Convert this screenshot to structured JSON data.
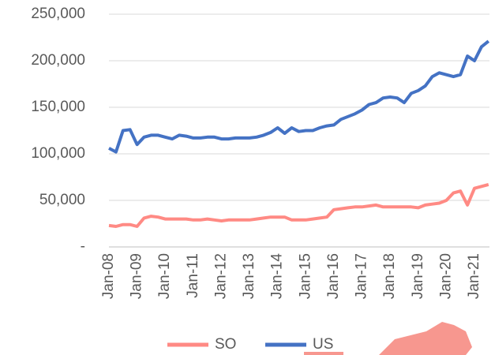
{
  "chart_data": {
    "type": "line",
    "categories": [
      "Jan-08",
      null,
      null,
      null,
      "Jan-09",
      null,
      null,
      null,
      "Jan-10",
      null,
      null,
      null,
      "Jan-11",
      null,
      null,
      null,
      "Jan-12",
      null,
      null,
      null,
      "Jan-13",
      null,
      null,
      null,
      "Jan-14",
      null,
      null,
      null,
      "Jan-15",
      null,
      null,
      null,
      "Jan-16",
      null,
      null,
      null,
      "Jan-17",
      null,
      null,
      null,
      "Jan-18",
      null,
      null,
      null,
      "Jan-19",
      null,
      null,
      null,
      "Jan-20",
      null,
      null,
      null,
      "Jan-21",
      null,
      null
    ],
    "series": [
      {
        "name": "SO",
        "color": "#ff8a84",
        "values": [
          23000,
          22000,
          24000,
          24000,
          22000,
          31000,
          33000,
          32000,
          30000,
          30000,
          30000,
          30000,
          29000,
          29000,
          30000,
          29000,
          28000,
          29000,
          29000,
          29000,
          29000,
          30000,
          31000,
          32000,
          32000,
          32000,
          29000,
          29000,
          29000,
          30000,
          31000,
          32000,
          40000,
          41000,
          42000,
          43000,
          43000,
          44000,
          45000,
          43000,
          43000,
          43000,
          43000,
          43000,
          42000,
          45000,
          46000,
          47000,
          50000,
          58000,
          60000,
          45000,
          63000,
          65000,
          67000
        ]
      },
      {
        "name": "US",
        "color": "#4472c4",
        "values": [
          106000,
          102000,
          125000,
          126000,
          110000,
          118000,
          120000,
          120000,
          118000,
          116000,
          120000,
          119000,
          117000,
          117000,
          118000,
          118000,
          116000,
          116000,
          117000,
          117000,
          117000,
          118000,
          120000,
          123000,
          128000,
          122000,
          128000,
          124000,
          125000,
          125000,
          128000,
          130000,
          131000,
          137000,
          140000,
          143000,
          147000,
          153000,
          155000,
          160000,
          161000,
          160000,
          155000,
          165000,
          168000,
          173000,
          183000,
          187000,
          185000,
          183000,
          185000,
          205000,
          200000,
          215000,
          221000
        ]
      }
    ],
    "ylim": [
      0,
      250000
    ],
    "yticks": [
      {
        "value": 0,
        "label": "-"
      },
      {
        "value": 50000,
        "label": "50,000"
      },
      {
        "value": 100000,
        "label": "100,000"
      },
      {
        "value": 150000,
        "label": "150,000"
      },
      {
        "value": 200000,
        "label": "200,000"
      },
      {
        "value": 250000,
        "label": "250,000"
      }
    ],
    "grid": true,
    "legend": "bottom"
  }
}
